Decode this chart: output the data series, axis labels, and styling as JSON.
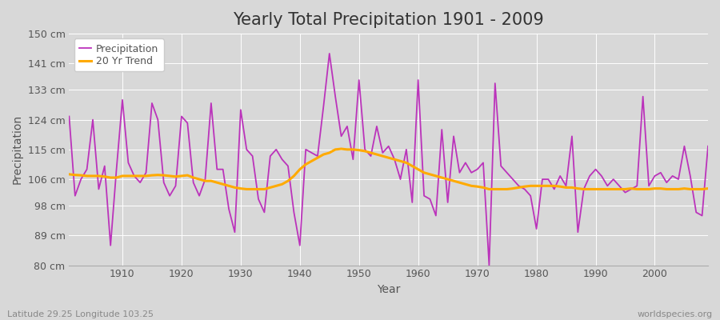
{
  "title": "Yearly Total Precipitation 1901 - 2009",
  "ylabel": "Precipitation",
  "xlabel": "Year",
  "bottom_left": "Latitude 29.25 Longitude 103.25",
  "bottom_right": "worldspecies.org",
  "ylim": [
    80,
    150
  ],
  "yticks": [
    80,
    89,
    98,
    106,
    115,
    124,
    133,
    141,
    150
  ],
  "ytick_labels": [
    "80 cm",
    "89 cm",
    "98 cm",
    "106 cm",
    "115 cm",
    "124 cm",
    "133 cm",
    "141 cm",
    "150 cm"
  ],
  "years": [
    1901,
    1902,
    1903,
    1904,
    1905,
    1906,
    1907,
    1908,
    1909,
    1910,
    1911,
    1912,
    1913,
    1914,
    1915,
    1916,
    1917,
    1918,
    1919,
    1920,
    1921,
    1922,
    1923,
    1924,
    1925,
    1926,
    1927,
    1928,
    1929,
    1930,
    1931,
    1932,
    1933,
    1934,
    1935,
    1936,
    1937,
    1938,
    1939,
    1940,
    1941,
    1942,
    1943,
    1944,
    1945,
    1946,
    1947,
    1948,
    1949,
    1950,
    1951,
    1952,
    1953,
    1954,
    1955,
    1956,
    1957,
    1958,
    1959,
    1960,
    1961,
    1962,
    1963,
    1964,
    1965,
    1966,
    1967,
    1968,
    1969,
    1970,
    1971,
    1972,
    1973,
    1974,
    1975,
    1976,
    1977,
    1978,
    1979,
    1980,
    1981,
    1982,
    1983,
    1984,
    1985,
    1986,
    1987,
    1988,
    1989,
    1990,
    1991,
    1992,
    1993,
    1994,
    1995,
    1996,
    1997,
    1998,
    1999,
    2000,
    2001,
    2002,
    2003,
    2004,
    2005,
    2006,
    2007,
    2008,
    2009
  ],
  "precip": [
    125,
    101,
    106,
    109,
    124,
    103,
    110,
    86,
    109,
    130,
    111,
    107,
    105,
    108,
    129,
    124,
    105,
    101,
    104,
    125,
    123,
    105,
    101,
    106,
    129,
    109,
    109,
    97,
    90,
    127,
    115,
    113,
    100,
    96,
    113,
    115,
    112,
    110,
    96,
    86,
    115,
    114,
    113,
    128,
    144,
    131,
    119,
    122,
    112,
    136,
    115,
    113,
    122,
    114,
    116,
    112,
    106,
    115,
    99,
    136,
    101,
    100,
    95,
    121,
    99,
    119,
    108,
    111,
    108,
    109,
    111,
    80,
    135,
    110,
    108,
    106,
    104,
    103,
    101,
    91,
    106,
    106,
    103,
    107,
    104,
    119,
    90,
    103,
    107,
    109,
    107,
    104,
    106,
    104,
    102,
    103,
    104,
    131,
    104,
    107,
    108,
    105,
    107,
    106,
    116,
    107,
    96,
    95,
    116
  ],
  "trend": [
    107.5,
    107.3,
    107.2,
    107.0,
    107.0,
    107.0,
    106.8,
    106.5,
    106.5,
    107.0,
    107.0,
    107.0,
    107.0,
    107.0,
    107.2,
    107.3,
    107.2,
    107.0,
    106.8,
    107.0,
    107.2,
    106.5,
    106.0,
    105.5,
    105.5,
    105.0,
    104.5,
    104.0,
    103.5,
    103.2,
    103.0,
    103.0,
    103.0,
    103.0,
    103.5,
    104.0,
    104.5,
    105.5,
    107.0,
    109.0,
    110.5,
    111.5,
    112.5,
    113.5,
    114.0,
    115.0,
    115.2,
    115.0,
    115.0,
    114.8,
    114.5,
    114.0,
    113.5,
    113.0,
    112.5,
    112.0,
    111.5,
    111.0,
    110.0,
    109.0,
    108.0,
    107.5,
    107.0,
    106.5,
    106.0,
    105.5,
    105.0,
    104.5,
    104.0,
    103.8,
    103.5,
    103.0,
    103.0,
    103.0,
    103.0,
    103.2,
    103.5,
    103.8,
    104.0,
    104.0,
    104.0,
    104.0,
    104.0,
    103.8,
    103.5,
    103.5,
    103.2,
    103.0,
    103.0,
    103.0,
    103.0,
    103.0,
    103.0,
    103.0,
    103.0,
    103.2,
    103.0,
    103.0,
    103.0,
    103.2,
    103.2,
    103.0,
    103.0,
    103.0,
    103.2,
    103.0,
    103.0,
    103.0,
    103.2
  ],
  "precip_color": "#bb33bb",
  "trend_color": "#ffaa00",
  "fig_bg_color": "#d8d8d8",
  "plot_bg_color": "#d8d8d8",
  "grid_color": "#ffffff",
  "title_color": "#333333",
  "label_color": "#555555",
  "tick_color": "#555555",
  "title_fontsize": 15,
  "axis_label_fontsize": 10,
  "tick_fontsize": 9,
  "legend_fontsize": 9,
  "annot_fontsize": 8,
  "xticks": [
    1910,
    1920,
    1930,
    1940,
    1950,
    1960,
    1970,
    1980,
    1990,
    2000
  ],
  "xlim": [
    1901,
    2009
  ]
}
